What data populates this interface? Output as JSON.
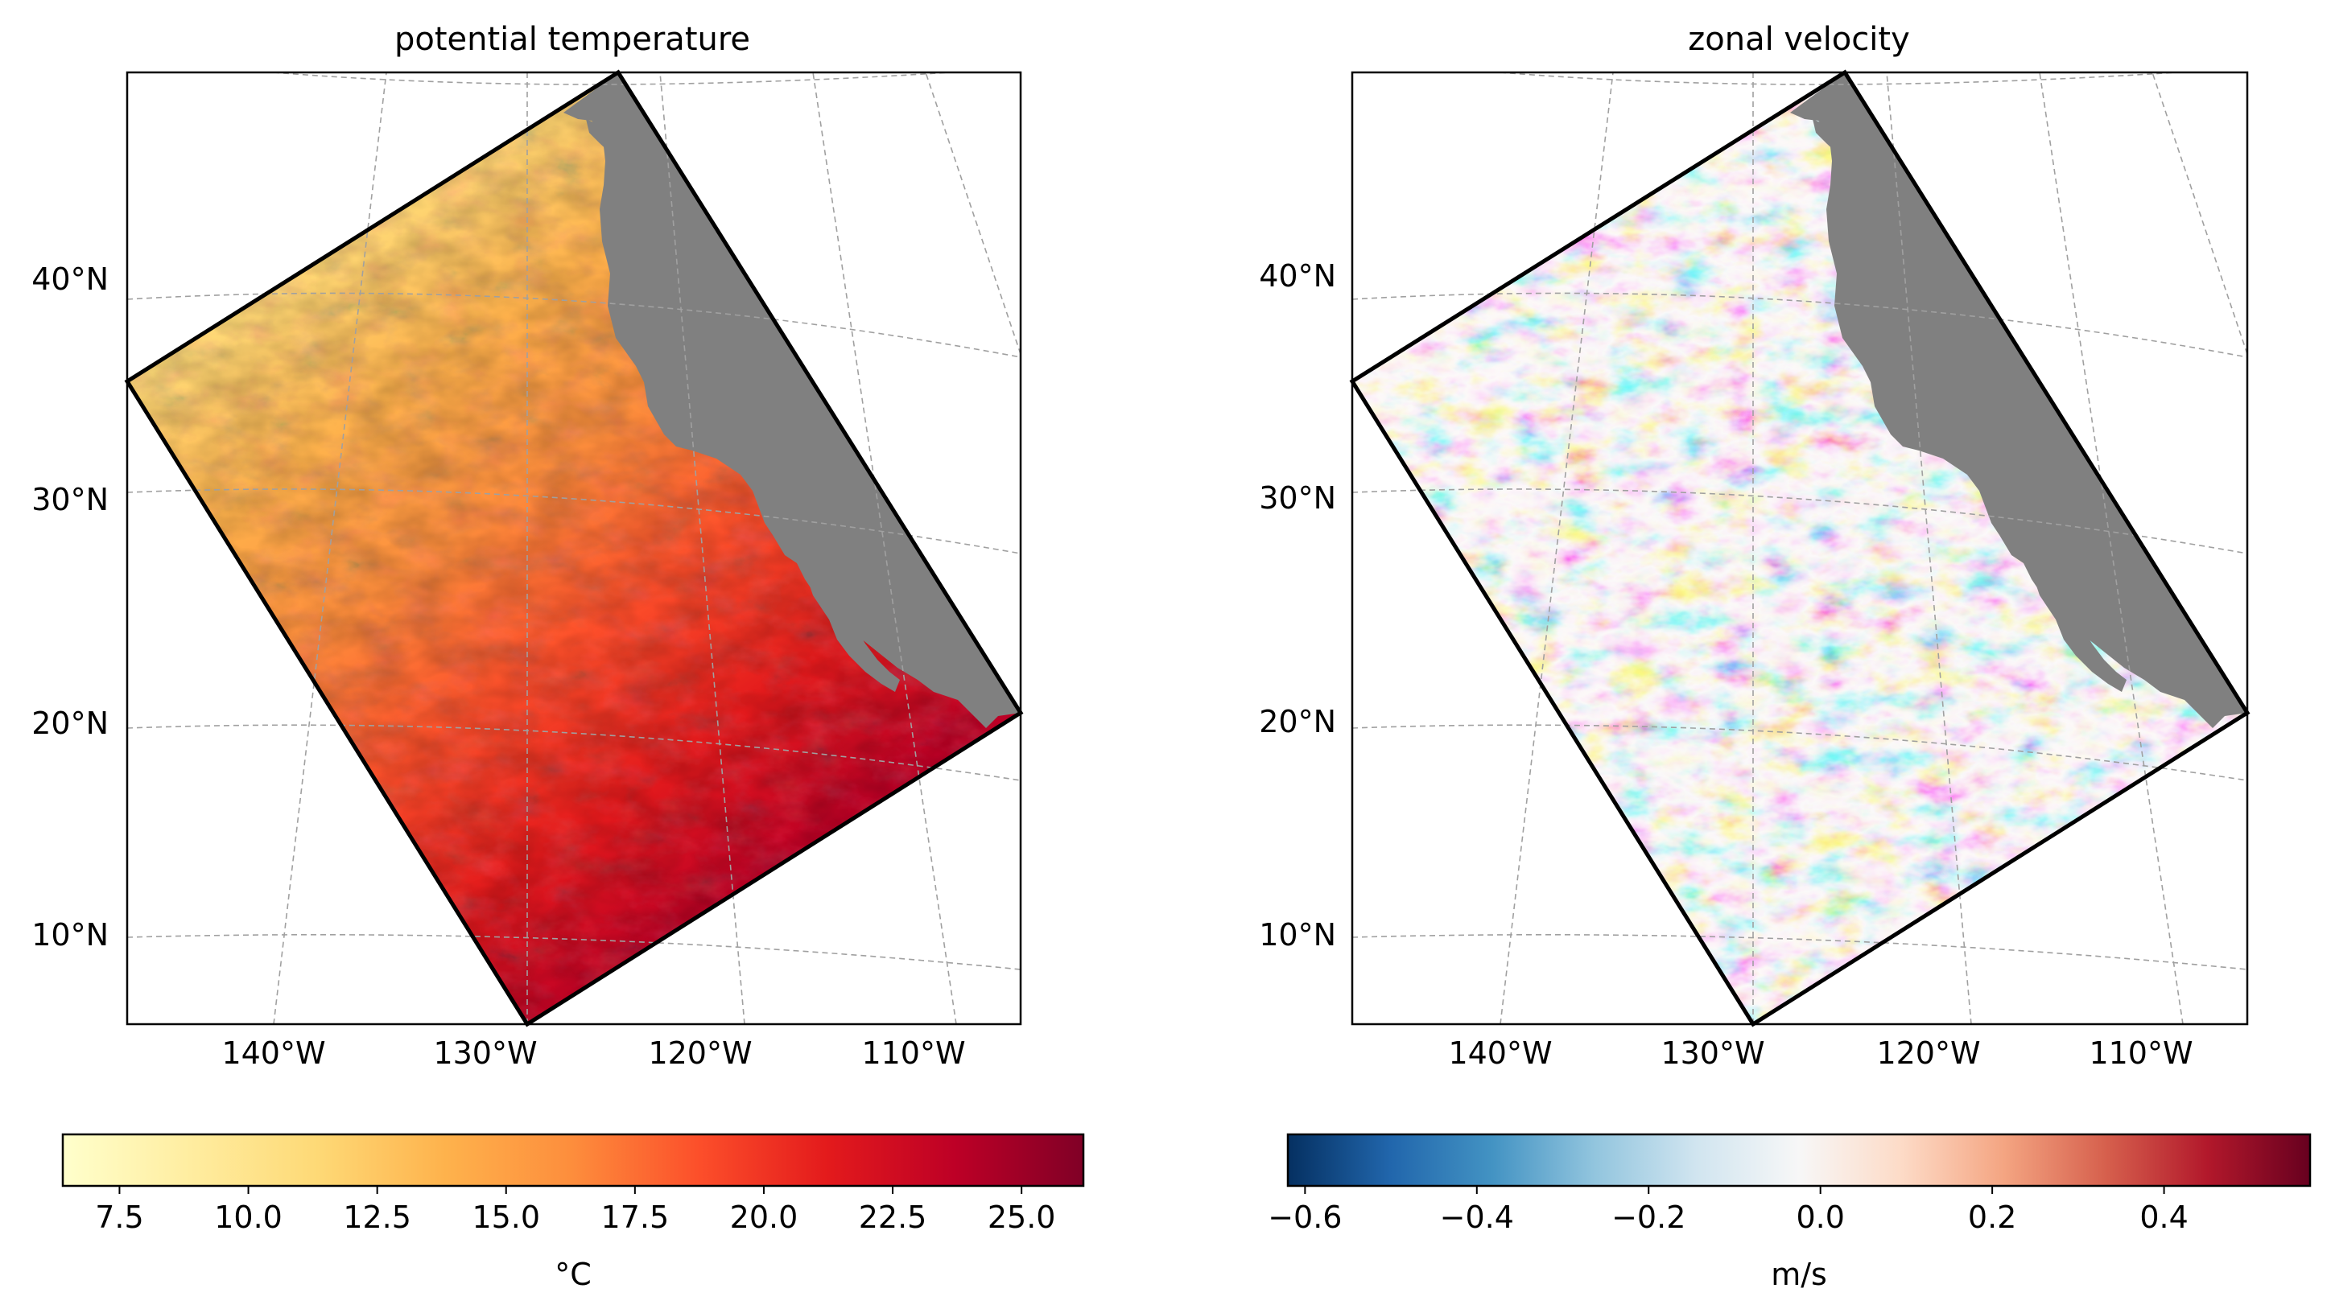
{
  "panels": [
    {
      "id": "temperature",
      "title": "potential temperature",
      "colormap": [
        "#ffffcc",
        "#ffeda0",
        "#fed976",
        "#feb24c",
        "#fd8d3c",
        "#fc4e2a",
        "#e31a1c",
        "#bd0026",
        "#800026"
      ],
      "colorbar": {
        "range": [
          6.4,
          26.2
        ],
        "ticks": [
          7.5,
          10.0,
          12.5,
          15.0,
          17.5,
          20.0,
          22.5,
          25.0
        ],
        "tick_labels": [
          "7.5",
          "10.0",
          "12.5",
          "15.0",
          "17.5",
          "20.0",
          "22.5",
          "25.0"
        ],
        "label": "°C"
      }
    },
    {
      "id": "velocity",
      "title": "zonal velocity",
      "colormap": [
        "#053061",
        "#2166ac",
        "#4393c3",
        "#92c5de",
        "#d1e5f0",
        "#f7f7f7",
        "#fddbc7",
        "#f4a582",
        "#d6604d",
        "#b2182b",
        "#67001f"
      ],
      "colorbar": {
        "range": [
          -0.62,
          0.57
        ],
        "ticks": [
          -0.6,
          -0.4,
          -0.2,
          0.0,
          0.2,
          0.4
        ],
        "tick_labels": [
          "−0.6",
          "−0.4",
          "−0.2",
          "0.0",
          "0.2",
          "0.4"
        ],
        "label": "m/s"
      }
    }
  ],
  "lat_labels": [
    "40°N",
    "30°N",
    "20°N",
    "10°N"
  ],
  "lon_labels": [
    "140°W",
    "130°W",
    "120°W",
    "110°W"
  ],
  "land_color": "#808080",
  "gridline_color": "#a0a0a0"
}
